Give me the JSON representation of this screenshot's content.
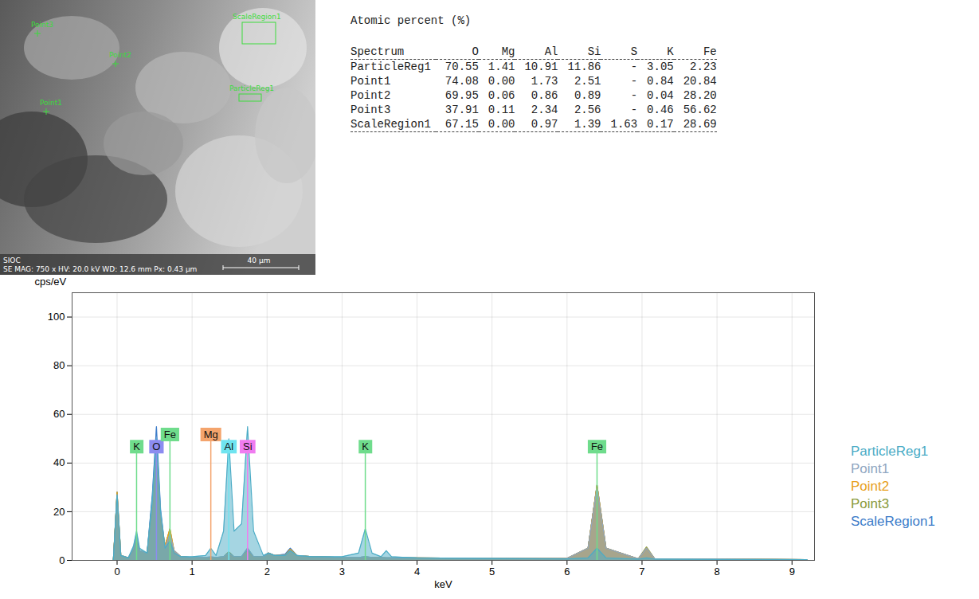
{
  "image": {
    "point_labels": [
      "Point3",
      "Point2",
      "Point1"
    ],
    "region_labels": [
      "ScaleRegion1",
      "ParticleReg1"
    ],
    "info_left": "SIOC",
    "info_bar": "SE  MAG: 750 x  HV: 20.0 kV  WD: 12.6 mm  Px: 0.43 µm",
    "scale_bar": "40 µm"
  },
  "table": {
    "title": "Atomic percent (%)",
    "columns": [
      "Spectrum",
      "O",
      "Mg",
      "Al",
      "Si",
      "S",
      "K",
      "Fe"
    ],
    "rows": [
      [
        "ParticleReg1",
        "70.55",
        "1.41",
        "10.91",
        "11.86",
        "-",
        "3.05",
        "2.23"
      ],
      [
        "Point1",
        "74.08",
        "0.00",
        "1.73",
        "2.51",
        "-",
        "0.84",
        "20.84"
      ],
      [
        "Point2",
        "69.95",
        "0.06",
        "0.86",
        "0.89",
        "-",
        "0.04",
        "28.20"
      ],
      [
        "Point3",
        "37.91",
        "0.11",
        "2.34",
        "2.56",
        "-",
        "0.46",
        "56.62"
      ],
      [
        "ScaleRegion1",
        "67.15",
        "0.00",
        "0.97",
        "1.39",
        "1.63",
        "0.17",
        "28.69"
      ]
    ]
  },
  "chart_data": {
    "type": "area",
    "x_label": "keV",
    "y_label": "cps/eV",
    "x": [
      -0.05,
      0,
      0.05,
      0.15,
      0.22,
      0.26,
      0.3,
      0.4,
      0.47,
      0.525,
      0.58,
      0.64,
      0.705,
      0.76,
      0.85,
      1.0,
      1.18,
      1.25,
      1.32,
      1.42,
      1.49,
      1.56,
      1.66,
      1.74,
      1.82,
      1.95,
      2.02,
      2.1,
      2.24,
      2.31,
      2.4,
      2.6,
      3.0,
      3.22,
      3.31,
      3.4,
      3.52,
      3.59,
      3.66,
      4.0,
      5.0,
      6.0,
      6.28,
      6.4,
      6.52,
      6.95,
      7.06,
      7.17,
      8.0,
      9.2
    ],
    "series": [
      {
        "name": "ParticleReg1",
        "color": "#4bacc6",
        "values": [
          0,
          27,
          2,
          1,
          6,
          12,
          5,
          3,
          25,
          50,
          20,
          5,
          8,
          3,
          1.5,
          1.5,
          2,
          5,
          2,
          12,
          50,
          12,
          15,
          55,
          12,
          2,
          3,
          2,
          2,
          4,
          2,
          1.5,
          1.5,
          3,
          13,
          3,
          1.5,
          4,
          1.5,
          1,
          0.8,
          0.6,
          1,
          5,
          1,
          0.5,
          1,
          0.5,
          0.4,
          0.3
        ]
      },
      {
        "name": "Point1",
        "color": "#8fa6c1",
        "values": [
          0,
          27,
          2,
          1,
          5,
          10,
          4,
          3,
          24,
          48,
          19,
          5,
          11,
          4,
          1.5,
          1.2,
          1.2,
          1.5,
          1.2,
          1.5,
          3,
          1.5,
          1.5,
          5,
          1.5,
          1.5,
          3,
          2,
          2,
          4,
          2,
          1.5,
          1.2,
          1.2,
          1.5,
          1.2,
          1.1,
          1,
          1,
          1,
          0.8,
          0.8,
          5,
          30,
          5,
          0.6,
          5,
          0.6,
          0.5,
          0.3
        ]
      },
      {
        "name": "Point2",
        "color": "#e8a020",
        "values": [
          0,
          28,
          2,
          1,
          5,
          9,
          4,
          3,
          23,
          46,
          18,
          6,
          13,
          4,
          1.5,
          1.2,
          1.2,
          1.3,
          1.2,
          1.3,
          2.5,
          1.3,
          1.3,
          3.5,
          1.3,
          1.5,
          3,
          2,
          2,
          4.5,
          2,
          1.5,
          1.2,
          1.2,
          1.3,
          1.2,
          1.1,
          1,
          1,
          1,
          0.8,
          0.8,
          5,
          31,
          5,
          0.6,
          5,
          0.6,
          0.5,
          0.3
        ]
      },
      {
        "name": "Point3",
        "color": "#8a9a3a",
        "values": [
          0,
          28,
          2,
          1,
          4,
          8,
          4,
          3,
          20,
          40,
          16,
          6,
          13,
          4,
          1.5,
          1.2,
          1.2,
          1.3,
          1.2,
          1.5,
          3.5,
          1.5,
          1.5,
          5,
          1.5,
          1.5,
          3,
          2,
          2,
          4.5,
          2,
          1.5,
          1.2,
          1.2,
          1.5,
          1.2,
          1.1,
          1,
          1,
          1,
          0.8,
          0.8,
          5,
          31,
          5,
          0.6,
          5.5,
          0.6,
          0.5,
          0.3
        ]
      },
      {
        "name": "ScaleRegion1",
        "color": "#3d7cc9",
        "values": [
          0,
          28,
          2,
          1,
          5,
          11,
          4,
          3,
          27,
          55,
          21,
          5,
          11,
          4,
          1.5,
          1.2,
          1.2,
          1.2,
          1.2,
          1.3,
          2.5,
          1.3,
          1.3,
          4,
          1.3,
          1.5,
          3,
          2,
          2.5,
          5,
          2,
          1.5,
          1.2,
          1.2,
          1.3,
          1.2,
          1.1,
          1,
          1,
          1,
          0.8,
          0.8,
          5,
          31,
          5,
          0.6,
          5,
          0.6,
          0.5,
          0.3
        ]
      }
    ],
    "annotations": [
      {
        "text": "K",
        "x": 0.26,
        "y": 44,
        "color": "#6fdc8c"
      },
      {
        "text": "O",
        "x": 0.525,
        "y": 44,
        "color": "#8c8cf0"
      },
      {
        "text": "Fe",
        "x": 0.705,
        "y": 49,
        "color": "#6fdc8c"
      },
      {
        "text": "Mg",
        "x": 1.25,
        "y": 49,
        "color": "#f4a46c"
      },
      {
        "text": "Al",
        "x": 1.49,
        "y": 44,
        "color": "#6fe4f0"
      },
      {
        "text": "Si",
        "x": 1.74,
        "y": 44,
        "color": "#f07cf0"
      },
      {
        "text": "K",
        "x": 3.31,
        "y": 44,
        "color": "#6fdc8c"
      },
      {
        "text": "Fe",
        "x": 6.4,
        "y": 44,
        "color": "#6fdc8c"
      }
    ],
    "xlim": [
      -0.6,
      9.3
    ],
    "xticks": [
      0,
      1,
      2,
      3,
      4,
      5,
      6,
      7,
      8,
      9
    ],
    "ylim": [
      0,
      110
    ],
    "yticks": [
      0,
      20,
      40,
      60,
      80,
      100
    ],
    "grid": true,
    "legend": "right"
  }
}
